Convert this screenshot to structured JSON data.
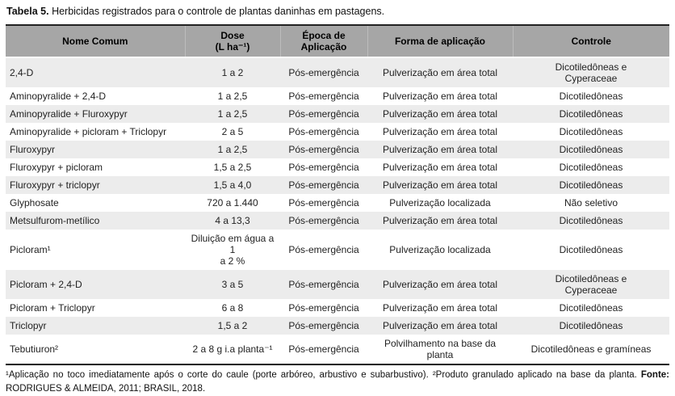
{
  "caption": {
    "label": "Tabela 5.",
    "text": "Herbicidas registrados para o controle de plantas daninhas em pastagens."
  },
  "table": {
    "column_keys": [
      "nome-comum",
      "dose",
      "epoca-aplicacao",
      "forma-aplicacao",
      "controle"
    ],
    "headers": [
      {
        "line1": "Nome Comum",
        "line2": ""
      },
      {
        "line1": "Dose",
        "line2": "(L ha⁻¹)"
      },
      {
        "line1": "Época de",
        "line2": "Aplicação"
      },
      {
        "line1": "Forma de aplicação",
        "line2": ""
      },
      {
        "line1": "Controle",
        "line2": ""
      }
    ],
    "rows": [
      {
        "cells": [
          "2,4-D",
          "1 a 2",
          "Pós-emergência",
          "Pulverização em área total",
          "Dicotiledôneas e\nCyperaceae"
        ]
      },
      {
        "cells": [
          "Aminopyralide + 2,4-D",
          "1 a 2,5",
          "Pós-emergência",
          "Pulverização em área total",
          "Dicotiledôneas"
        ]
      },
      {
        "cells": [
          "Aminopyralide + Fluroxypyr",
          "1 a 2,5",
          "Pós-emergência",
          "Pulverização em área total",
          "Dicotiledôneas"
        ]
      },
      {
        "cells": [
          "Aminopyralide + picloram + Triclopyr",
          "2 a 5",
          "Pós-emergência",
          "Pulverização em área total",
          "Dicotiledôneas"
        ]
      },
      {
        "cells": [
          "Fluroxypyr",
          "1 a 2,5",
          "Pós-emergência",
          "Pulverização em área total",
          "Dicotiledôneas"
        ]
      },
      {
        "cells": [
          "Fluroxypyr + picloram",
          "1,5 a 2,5",
          "Pós-emergência",
          "Pulverização em área total",
          "Dicotiledôneas"
        ]
      },
      {
        "cells": [
          "Fluroxypyr + triclopyr",
          "1,5 a 4,0",
          "Pós-emergência",
          "Pulverização em área total",
          "Dicotiledôneas"
        ]
      },
      {
        "cells": [
          "Glyphosate",
          "720 a 1.440",
          "Pós-emergência",
          "Pulverização localizada",
          "Não seletivo"
        ]
      },
      {
        "cells": [
          "Metsulfurom-metílico",
          "4 a 13,3",
          "Pós-emergência",
          "Pulverização em área total",
          "Dicotiledôneas"
        ]
      },
      {
        "cells": [
          "Picloram¹",
          "Diluição em água a 1\na 2 %",
          "Pós-emergência",
          "Pulverização localizada",
          "Dicotiledôneas"
        ]
      },
      {
        "cells": [
          "Picloram + 2,4-D",
          "3 a 5",
          "Pós-emergência",
          "Pulverização em área total",
          "Dicotiledôneas e\nCyperaceae"
        ]
      },
      {
        "cells": [
          "Picloram + Triclopyr",
          "6 a 8",
          "Pós-emergência",
          "Pulverização em área total",
          "Dicotiledôneas"
        ]
      },
      {
        "cells": [
          "Triclopyr",
          "1,5 a 2",
          "Pós-emergência",
          "Pulverização em área total",
          "Dicotiledôneas"
        ]
      },
      {
        "cells": [
          "Tebutiuron²",
          "2 a 8 g i.a planta⁻¹",
          "Pós-emergência",
          "Polvilhamento na base da\nplanta",
          "Dicotiledôneas e gramíneas"
        ]
      }
    ]
  },
  "footnote": {
    "note1": "¹Aplicação no toco imediatamente após o corte do caule (porte arbóreo, arbustivo e subarbustivo).",
    "note2": "²Produto granulado aplicado na base da planta.",
    "source_label": "Fonte:",
    "source_text": "RODRIGUES & ALMEIDA, 2011; BRASIL, 2018."
  },
  "colors": {
    "header_bg": "#a6a6a6",
    "row_shaded_bg": "#ececec",
    "row_plain_bg": "#ffffff",
    "border": "#111111"
  }
}
